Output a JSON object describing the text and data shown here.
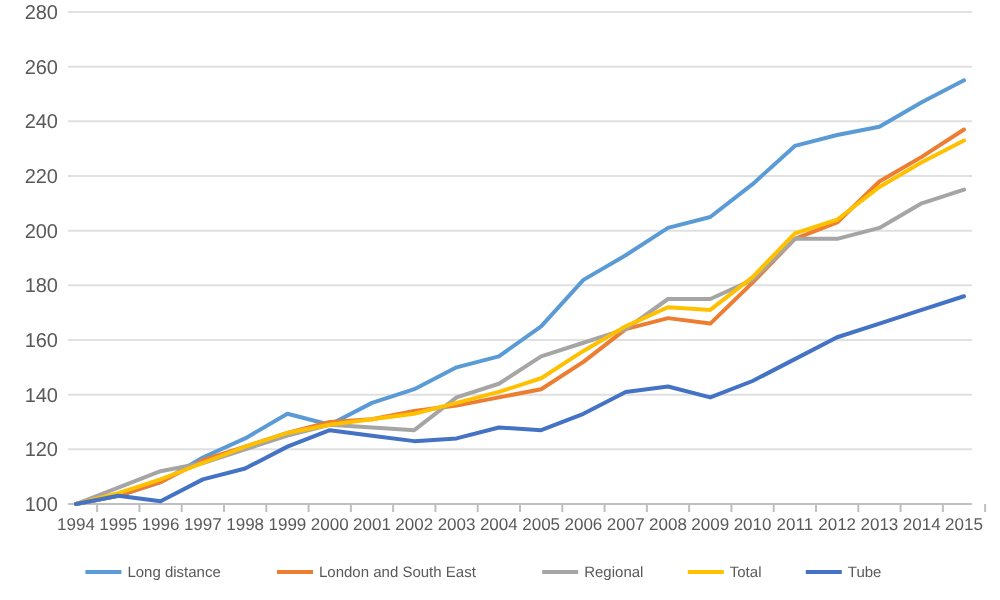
{
  "chart_data": {
    "type": "line",
    "categories": [
      "1994",
      "1995",
      "1996",
      "1997",
      "1998",
      "1999",
      "2000",
      "2001",
      "2002",
      "2003",
      "2004",
      "2005",
      "2006",
      "2007",
      "2008",
      "2009",
      "2010",
      "2011",
      "2012",
      "2013",
      "2014",
      "2015"
    ],
    "series": [
      {
        "name": "Long distance",
        "color": "#5b9bd5",
        "values": [
          100,
          103,
          108,
          117,
          124,
          133,
          129,
          137,
          142,
          150,
          154,
          165,
          182,
          191,
          201,
          205,
          217,
          231,
          235,
          238,
          247,
          255
        ]
      },
      {
        "name": "London and South East",
        "color": "#ed7d31",
        "values": [
          100,
          103,
          108,
          116,
          121,
          126,
          130,
          131,
          134,
          136,
          139,
          142,
          152,
          164,
          168,
          166,
          181,
          197,
          203,
          218,
          227,
          237
        ]
      },
      {
        "name": "Regional",
        "color": "#a5a5a5",
        "values": [
          100,
          106,
          112,
          115,
          120,
          125,
          129,
          128,
          127,
          139,
          144,
          154,
          159,
          164,
          175,
          175,
          182,
          197,
          197,
          201,
          210,
          215
        ]
      },
      {
        "name": "Total",
        "color": "#ffc000",
        "values": [
          100,
          104,
          109,
          115,
          121,
          126,
          129,
          131,
          133,
          137,
          141,
          146,
          156,
          165,
          172,
          171,
          183,
          199,
          204,
          216,
          225,
          233
        ]
      },
      {
        "name": "Tube",
        "color": "#4472c4",
        "values": [
          100,
          103,
          101,
          109,
          113,
          121,
          127,
          125,
          123,
          124,
          128,
          127,
          133,
          141,
          143,
          139,
          145,
          153,
          161,
          166,
          171,
          176
        ]
      }
    ],
    "ylim": [
      100,
      280
    ],
    "yticks": [
      100,
      120,
      140,
      160,
      180,
      200,
      220,
      240,
      260,
      280
    ],
    "grid": "y",
    "legend": "bottom",
    "marker": "none",
    "line_style": "solid"
  }
}
